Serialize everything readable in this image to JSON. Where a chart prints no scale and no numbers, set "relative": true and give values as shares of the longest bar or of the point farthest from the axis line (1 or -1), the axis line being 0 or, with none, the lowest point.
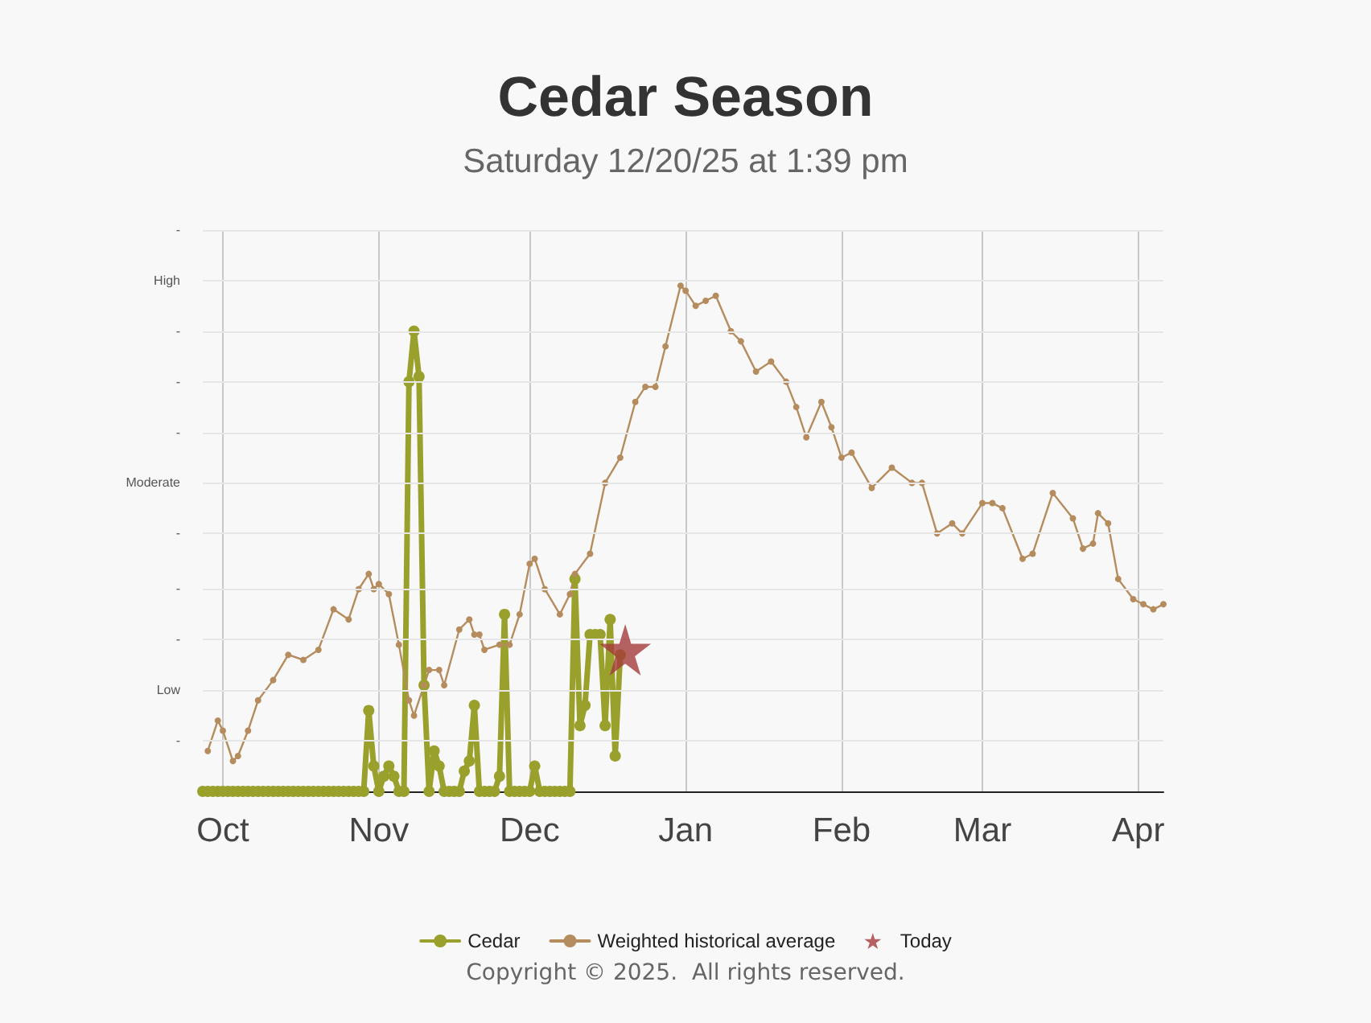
{
  "chart_data": {
    "type": "line",
    "title": "Cedar Season",
    "subtitle": "Saturday 12/20/25 at 1:39 pm",
    "annotations": [
      "Copyright © 2025.  All rights reserved."
    ],
    "relative": true,
    "xlim": [
      "2025-09-27",
      "2026-04-06"
    ],
    "xticks": [
      {
        "value": "2025-10-01",
        "label": "Oct"
      },
      {
        "value": "2025-11-01",
        "label": "Nov"
      },
      {
        "value": "2025-12-01",
        "label": "Dec"
      },
      {
        "value": "2026-01-01",
        "label": "Jan"
      },
      {
        "value": "2026-02-01",
        "label": "Feb"
      },
      {
        "value": "2026-03-01",
        "label": "Mar"
      },
      {
        "value": "2026-04-01",
        "label": "Apr"
      }
    ],
    "ref_lines": [
      {
        "axis": "y",
        "value": 0.1,
        "label": "-"
      },
      {
        "axis": "y",
        "value": 0.2,
        "label": "Low"
      },
      {
        "axis": "y",
        "value": 0.3,
        "label": "-"
      },
      {
        "axis": "y",
        "value": 0.4,
        "label": "-"
      },
      {
        "axis": "y",
        "value": 0.51,
        "label": "-"
      },
      {
        "axis": "y",
        "value": 0.61,
        "label": "Moderate"
      },
      {
        "axis": "y",
        "value": 0.71,
        "label": "-"
      },
      {
        "axis": "y",
        "value": 0.81,
        "label": "-"
      },
      {
        "axis": "y",
        "value": 0.91,
        "label": "-"
      },
      {
        "axis": "y",
        "value": 1.01,
        "label": "High"
      },
      {
        "axis": "y",
        "value": 1.11,
        "label": "-"
      }
    ],
    "grid": "x",
    "legend": "bottom",
    "line_style": "solid",
    "series": [
      {
        "name": "Cedar",
        "color": "#99a02b",
        "marker": "circle",
        "x": [
          "2025-09-27",
          "2025-09-28",
          "2025-09-29",
          "2025-09-30",
          "2025-10-01",
          "2025-10-02",
          "2025-10-03",
          "2025-10-04",
          "2025-10-05",
          "2025-10-06",
          "2025-10-07",
          "2025-10-08",
          "2025-10-09",
          "2025-10-10",
          "2025-10-11",
          "2025-10-12",
          "2025-10-13",
          "2025-10-14",
          "2025-10-15",
          "2025-10-16",
          "2025-10-17",
          "2025-10-18",
          "2025-10-19",
          "2025-10-20",
          "2025-10-21",
          "2025-10-22",
          "2025-10-23",
          "2025-10-24",
          "2025-10-25",
          "2025-10-26",
          "2025-10-27",
          "2025-10-28",
          "2025-10-29",
          "2025-10-30",
          "2025-10-31",
          "2025-11-01",
          "2025-11-02",
          "2025-11-03",
          "2025-11-04",
          "2025-11-05",
          "2025-11-06",
          "2025-11-07",
          "2025-11-08",
          "2025-11-09",
          "2025-11-10",
          "2025-11-11",
          "2025-11-12",
          "2025-11-13",
          "2025-11-14",
          "2025-11-15",
          "2025-11-16",
          "2025-11-17",
          "2025-11-18",
          "2025-11-19",
          "2025-11-20",
          "2025-11-21",
          "2025-11-22",
          "2025-11-23",
          "2025-11-24",
          "2025-11-25",
          "2025-11-26",
          "2025-11-27",
          "2025-11-28",
          "2025-11-29",
          "2025-11-30",
          "2025-12-01",
          "2025-12-02",
          "2025-12-03",
          "2025-12-04",
          "2025-12-05",
          "2025-12-06",
          "2025-12-07",
          "2025-12-08",
          "2025-12-09",
          "2025-12-10",
          "2025-12-11",
          "2025-12-12",
          "2025-12-13",
          "2025-12-14",
          "2025-12-15",
          "2025-12-16",
          "2025-12-17",
          "2025-12-18",
          "2025-12-19"
        ],
        "values": [
          0,
          0,
          0,
          0,
          0,
          0,
          0,
          0,
          0,
          0,
          0,
          0,
          0,
          0,
          0,
          0,
          0,
          0,
          0,
          0,
          0,
          0,
          0,
          0,
          0,
          0,
          0,
          0,
          0,
          0,
          0,
          0,
          0,
          0.16,
          0.05,
          0,
          0.03,
          0.05,
          0.03,
          0,
          0,
          0.81,
          0.91,
          0.82,
          0.21,
          0,
          0.08,
          0.05,
          0,
          0,
          0,
          0,
          0.04,
          0.06,
          0.17,
          0,
          0,
          0,
          0,
          0.03,
          0.35,
          0,
          0,
          0,
          0,
          0,
          0.05,
          0,
          0,
          0,
          0,
          0,
          0,
          0,
          0.42,
          0.13,
          0.17,
          0.31,
          0.31,
          0.31,
          0.13,
          0.34,
          0.07,
          0.27
        ]
      },
      {
        "name": "Weighted historical average",
        "color": "#b58c5e",
        "marker": "circle",
        "x": [
          "2025-09-28",
          "2025-09-30",
          "2025-10-01",
          "2025-10-03",
          "2025-10-04",
          "2025-10-06",
          "2025-10-08",
          "2025-10-11",
          "2025-10-14",
          "2025-10-17",
          "2025-10-20",
          "2025-10-23",
          "2025-10-26",
          "2025-10-28",
          "2025-10-30",
          "2025-10-31",
          "2025-11-01",
          "2025-11-03",
          "2025-11-05",
          "2025-11-07",
          "2025-11-08",
          "2025-11-10",
          "2025-11-11",
          "2025-11-13",
          "2025-11-14",
          "2025-11-17",
          "2025-11-19",
          "2025-11-20",
          "2025-11-21",
          "2025-11-22",
          "2025-11-25",
          "2025-11-27",
          "2025-11-29",
          "2025-12-01",
          "2025-12-02",
          "2025-12-04",
          "2025-12-07",
          "2025-12-09",
          "2025-12-10",
          "2025-12-13",
          "2025-12-16",
          "2025-12-19",
          "2025-12-22",
          "2025-12-24",
          "2025-12-26",
          "2025-12-28",
          "2025-12-31",
          "2026-01-01",
          "2026-01-03",
          "2026-01-05",
          "2026-01-07",
          "2026-01-10",
          "2026-01-12",
          "2026-01-15",
          "2026-01-18",
          "2026-01-21",
          "2026-01-23",
          "2026-01-25",
          "2026-01-28",
          "2026-01-30",
          "2026-02-01",
          "2026-02-03",
          "2026-02-07",
          "2026-02-11",
          "2026-02-15",
          "2026-02-17",
          "2026-02-20",
          "2026-02-23",
          "2026-02-25",
          "2026-03-01",
          "2026-03-03",
          "2026-03-05",
          "2026-03-09",
          "2026-03-11",
          "2026-03-15",
          "2026-03-19",
          "2026-03-21",
          "2026-03-23",
          "2026-03-24",
          "2026-03-26",
          "2026-03-28",
          "2026-03-31",
          "2026-04-02",
          "2026-04-04",
          "2026-04-06"
        ],
        "values": [
          0.08,
          0.14,
          0.12,
          0.06,
          0.07,
          0.12,
          0.18,
          0.22,
          0.27,
          0.26,
          0.28,
          0.36,
          0.34,
          0.4,
          0.43,
          0.4,
          0.41,
          0.39,
          0.29,
          0.18,
          0.15,
          0.21,
          0.24,
          0.24,
          0.21,
          0.32,
          0.34,
          0.31,
          0.31,
          0.28,
          0.29,
          0.29,
          0.35,
          0.45,
          0.46,
          0.4,
          0.35,
          0.39,
          0.43,
          0.47,
          0.61,
          0.66,
          0.77,
          0.8,
          0.8,
          0.88,
          1,
          0.99,
          0.96,
          0.97,
          0.98,
          0.91,
          0.89,
          0.83,
          0.85,
          0.81,
          0.76,
          0.7,
          0.77,
          0.72,
          0.66,
          0.67,
          0.6,
          0.64,
          0.61,
          0.61,
          0.51,
          0.53,
          0.51,
          0.57,
          0.57,
          0.56,
          0.46,
          0.47,
          0.59,
          0.54,
          0.48,
          0.49,
          0.55,
          0.53,
          0.42,
          0.38,
          0.37,
          0.36,
          0.37
        ]
      },
      {
        "name": "Today",
        "type": "scatter",
        "color": "#a53b3b",
        "marker": "star",
        "x": [
          "2025-12-20"
        ],
        "values": [
          0.28
        ]
      }
    ]
  }
}
